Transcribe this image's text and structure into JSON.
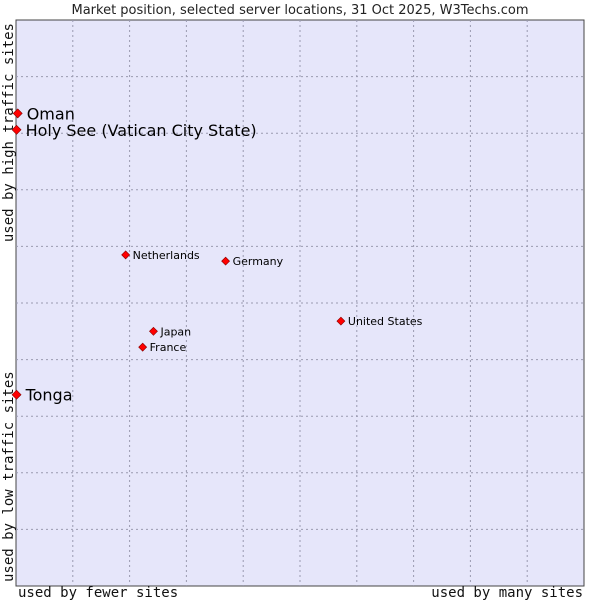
{
  "chart_data": {
    "type": "scatter",
    "title": "Market position, selected server locations, 31 Oct 2025, W3Techs.com",
    "xlabel_left": "used by fewer sites",
    "xlabel_right": "used by many sites",
    "ylabel_bottom": "used by low traffic sites",
    "ylabel_top": "used by high traffic sites",
    "xlim": [
      0,
      100
    ],
    "ylim": [
      0,
      100
    ],
    "grid": true,
    "marker_color": "#ff0000",
    "background_color": "#e6e6fa",
    "points": [
      {
        "label": "Oman",
        "x": 0.3,
        "y": 83.5,
        "emphasis": true
      },
      {
        "label": "Holy See (Vatican City State)",
        "x": 0.1,
        "y": 80.6,
        "emphasis": true
      },
      {
        "label": "Netherlands",
        "x": 19.3,
        "y": 58.5,
        "emphasis": false
      },
      {
        "label": "Germany",
        "x": 36.9,
        "y": 57.4,
        "emphasis": false
      },
      {
        "label": "United States",
        "x": 57.2,
        "y": 46.8,
        "emphasis": false
      },
      {
        "label": "Japan",
        "x": 24.2,
        "y": 45.0,
        "emphasis": false
      },
      {
        "label": "France",
        "x": 22.3,
        "y": 42.2,
        "emphasis": false
      },
      {
        "label": "Tonga",
        "x": 0.1,
        "y": 33.8,
        "emphasis": true
      }
    ]
  }
}
